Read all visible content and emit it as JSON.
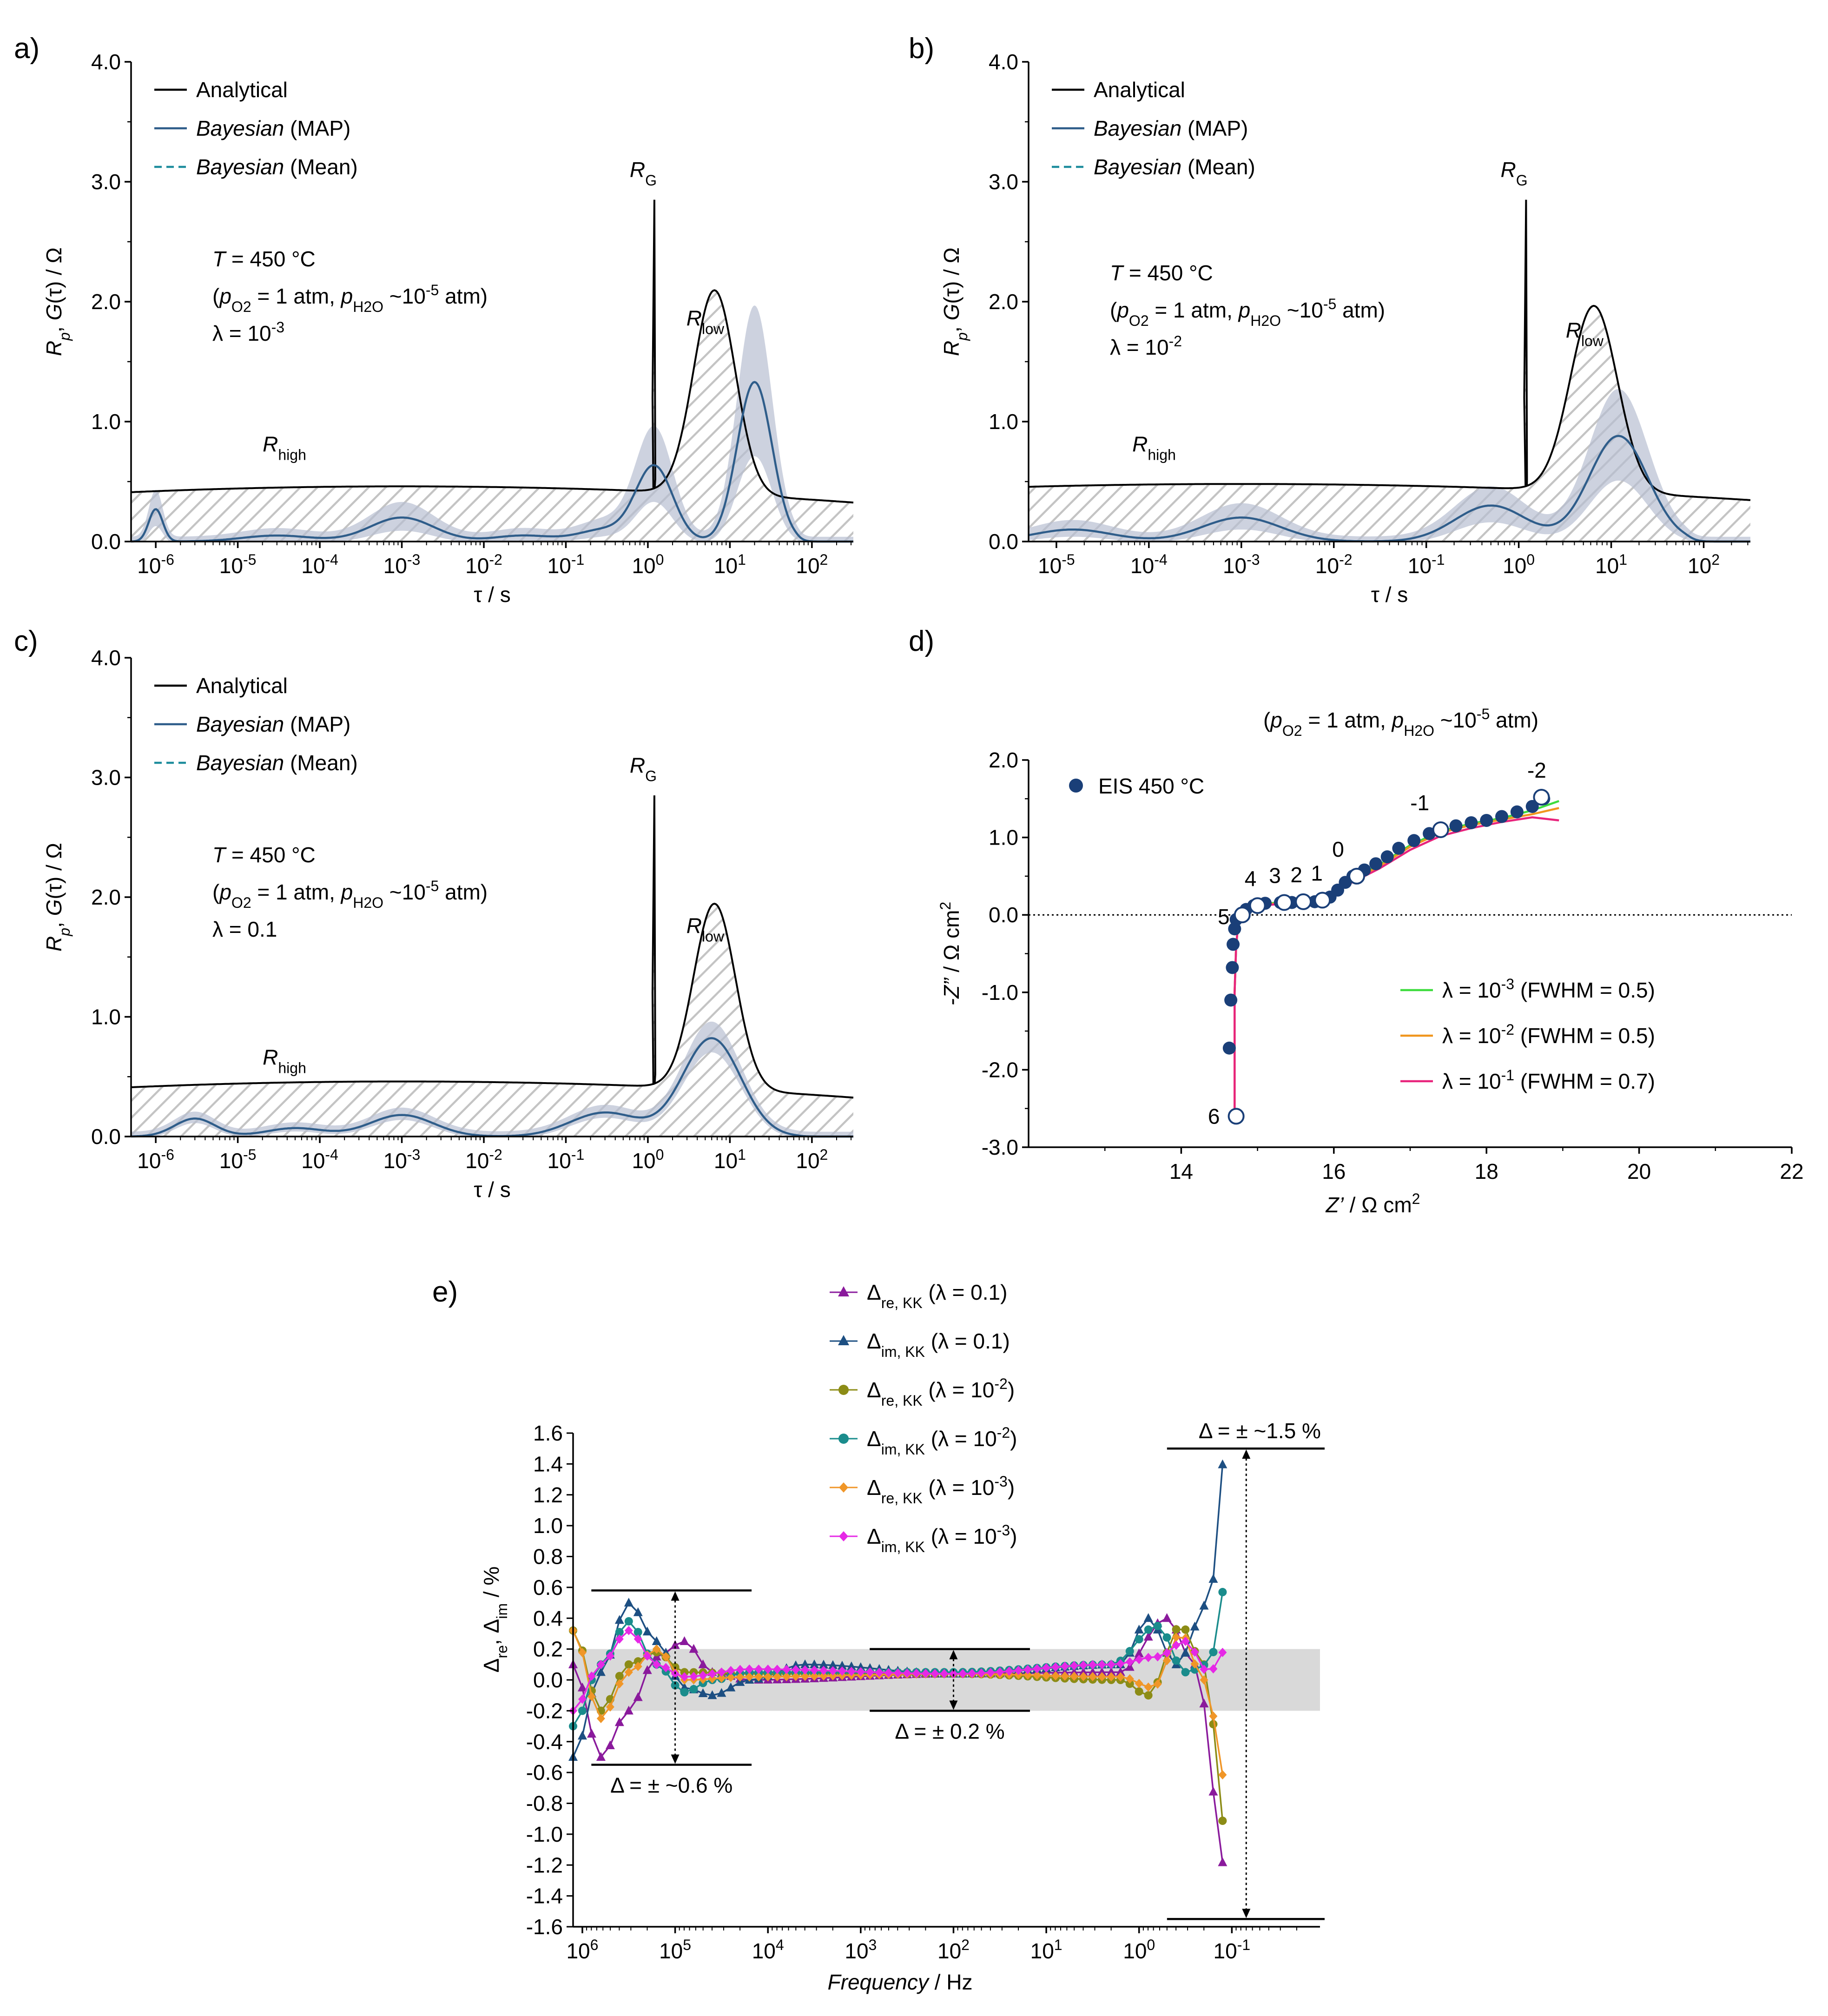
{
  "figure": {
    "panel_labels": [
      "a)",
      "b)",
      "c)",
      "d)",
      "e)"
    ],
    "colors": {
      "analytical": "#000000",
      "map": "#2f5d8a",
      "mean": "#1c8c9c",
      "credible": "#b8bfd2",
      "hatch": "#bfbfbf",
      "green": "#3ddc3d",
      "orange": "#f0961e",
      "pink": "#e8247c",
      "eis": "#1a3f78",
      "purple": "#8a1a9c",
      "navy": "#1d4f82",
      "olive": "#8c8c16",
      "teal": "#1a8c8c",
      "amber": "#f09628",
      "magenta": "#e628e6",
      "band": "#d9d9d9"
    }
  },
  "chart_data": [
    {
      "id": "a",
      "type": "line",
      "title": "",
      "xlabel": "τ / s",
      "ylabel": "R_p, G(τ) / Ω",
      "xscale": "log",
      "xlim": [
        5e-07,
        320
      ],
      "ylim": [
        0,
        4
      ],
      "yticks": [
        "0.0",
        "1.0",
        "2.0",
        "3.0",
        "4.0"
      ],
      "xtick_exps": [
        "-6",
        "-5",
        "-4",
        "-3",
        "-2",
        "-1",
        "0",
        "1",
        "2"
      ],
      "legend": {
        "position": "top-left",
        "entries": [
          {
            "label": "Analytical",
            "style": "solid",
            "color": "analytical"
          },
          {
            "label": "Bayesian",
            "suffix": "(MAP)",
            "style": "solid",
            "color": "map"
          },
          {
            "label": "Bayesian",
            "suffix": "(Mean)",
            "style": "dashed",
            "color": "mean"
          }
        ]
      },
      "conditions": [
        "T = 450 °C",
        "(pO2 = 1 atm, pH2O ~10-5 atm)",
        "λ = 10-3"
      ],
      "annotations": [
        {
          "text": "R",
          "sub": "G"
        },
        {
          "text": "R",
          "sub": "low"
        },
        {
          "text": "R",
          "sub": "high"
        }
      ],
      "rg_spike": {
        "x": 1.2,
        "y": 2.85
      },
      "analytical": {
        "a": 0.46,
        "b": 0.04,
        "c": 1.7,
        "w": 0.36,
        "xs": 1.2
      },
      "map_peaks": [
        [
          1e-06,
          0.27,
          0.12
        ],
        [
          3e-05,
          0.05,
          0.6
        ],
        [
          0.001,
          0.2,
          0.55
        ],
        [
          0.03,
          0.05,
          0.5
        ],
        [
          0.3,
          0.1,
          0.45
        ],
        [
          1.2,
          0.62,
          0.32
        ],
        [
          20,
          1.33,
          0.3
        ]
      ],
      "cutoff": 60,
      "band_rel": 0.45
    },
    {
      "id": "b",
      "type": "line",
      "title": "",
      "xlabel": "τ / s",
      "ylabel": "R_p, G(τ) / Ω",
      "xscale": "log",
      "xlim": [
        5e-06,
        320
      ],
      "ylim": [
        0,
        4
      ],
      "yticks": [
        "0.0",
        "1.0",
        "2.0",
        "3.0",
        "4.0"
      ],
      "xtick_exps": [
        "-5",
        "-4",
        "-3",
        "-2",
        "-1",
        "0",
        "1",
        "2"
      ],
      "legend": {
        "position": "top-left",
        "entries": [
          {
            "label": "Analytical",
            "style": "solid",
            "color": "analytical"
          },
          {
            "label": "Bayesian",
            "suffix": "(MAP)",
            "style": "solid",
            "color": "map"
          },
          {
            "label": "Bayesian",
            "suffix": "(Mean)",
            "style": "dashed",
            "color": "mean"
          }
        ]
      },
      "conditions": [
        "T = 450 °C",
        "(pO2 = 1 atm, pH2O ~10-5 atm)",
        "λ = 10-2"
      ],
      "annotations": [
        {
          "text": "R",
          "sub": "G"
        },
        {
          "text": "R",
          "sub": "low"
        },
        {
          "text": "R",
          "sub": "high"
        }
      ],
      "rg_spike": {
        "x": 1.2,
        "y": 2.85
      },
      "analytical": {
        "a": 0.48,
        "b": 0.04,
        "c": 1.55,
        "w": 0.36,
        "xs": 1.2
      },
      "map_peaks": [
        [
          1.5e-05,
          0.1,
          0.6
        ],
        [
          0.001,
          0.2,
          0.6
        ],
        [
          0.5,
          0.3,
          0.55
        ],
        [
          12,
          0.88,
          0.45
        ]
      ],
      "cutoff": 60,
      "band_rel": 0.4
    },
    {
      "id": "c",
      "type": "line",
      "title": "",
      "xlabel": "τ / s",
      "ylabel": "R_p, G(τ) / Ω",
      "xscale": "log",
      "xlim": [
        5e-07,
        320
      ],
      "ylim": [
        0,
        4
      ],
      "yticks": [
        "0.0",
        "1.0",
        "2.0",
        "3.0",
        "4.0"
      ],
      "xtick_exps": [
        "-6",
        "-5",
        "-4",
        "-3",
        "-2",
        "-1",
        "0",
        "1",
        "2"
      ],
      "legend": {
        "position": "top-left",
        "entries": [
          {
            "label": "Analytical",
            "style": "solid",
            "color": "analytical"
          },
          {
            "label": "Bayesian",
            "suffix": "(MAP)",
            "style": "solid",
            "color": "map"
          },
          {
            "label": "Bayesian",
            "suffix": "(Mean)",
            "style": "dashed",
            "color": "mean"
          }
        ]
      },
      "conditions": [
        "T = 450 °C",
        "(pO2 = 1 atm, pH2O ~10-5 atm)",
        "λ = 0.1"
      ],
      "annotations": [
        {
          "text": "R",
          "sub": "G"
        },
        {
          "text": "R",
          "sub": "low"
        },
        {
          "text": "R",
          "sub": "high"
        }
      ],
      "rg_spike": {
        "x": 1.2,
        "y": 2.85
      },
      "analytical": {
        "a": 0.46,
        "b": 0.04,
        "c": 1.55,
        "w": 0.36,
        "xs": 1.2
      },
      "map_peaks": [
        [
          3e-06,
          0.15,
          0.35
        ],
        [
          5e-05,
          0.07,
          0.5
        ],
        [
          0.001,
          0.18,
          0.55
        ],
        [
          0.3,
          0.2,
          0.6
        ],
        [
          6,
          0.82,
          0.5
        ]
      ],
      "cutoff": 60,
      "band_rel": 0.12
    },
    {
      "id": "d",
      "type": "scatter",
      "title": "(pO2 = 1 atm, pH2O ~10-5 atm)",
      "xlabel": "Z’ / Ω cm2",
      "ylabel": "-Z” / Ω cm2",
      "xlim": [
        12,
        22
      ],
      "ylim": [
        -3,
        2
      ],
      "xticks": [
        "14",
        "16",
        "18",
        "20",
        "22"
      ],
      "yticks": [
        "-3.0",
        "-2.0",
        "-1.0",
        "0.0",
        "1.0",
        "2.0"
      ],
      "series": [
        {
          "name": "EIS 450 °C",
          "color": "eis",
          "x": [
            14.63,
            14.65,
            14.67,
            14.68,
            14.7,
            14.72,
            14.78,
            14.85,
            14.95,
            15.1,
            15.3,
            15.45,
            15.6,
            15.75,
            15.85,
            15.95,
            16.05,
            16.15,
            16.25,
            16.4,
            16.55,
            16.7,
            16.85,
            17.05,
            17.25,
            17.4,
            17.6,
            17.8,
            18.0,
            18.2,
            18.4,
            18.6,
            18.75
          ],
          "y": [
            -1.72,
            -1.1,
            -0.68,
            -0.38,
            -0.18,
            -0.06,
            0.0,
            0.07,
            0.12,
            0.15,
            0.16,
            0.16,
            0.17,
            0.17,
            0.19,
            0.23,
            0.32,
            0.42,
            0.5,
            0.58,
            0.66,
            0.75,
            0.86,
            0.96,
            1.05,
            1.1,
            1.15,
            1.19,
            1.22,
            1.27,
            1.33,
            1.4,
            1.5
          ]
        },
        {
          "name": "λ = 10",
          "exp": "-3",
          "fwhm": "(FWHM = 0.5)",
          "color": "green",
          "x": [
            14.7,
            14.7,
            14.72,
            14.75,
            14.85,
            15.0,
            15.3,
            15.6,
            15.9,
            16.2,
            16.6,
            17.0,
            17.4,
            17.8,
            18.2,
            18.6,
            18.95
          ],
          "y": [
            -2.55,
            -1.0,
            -0.4,
            -0.08,
            0.08,
            0.14,
            0.16,
            0.18,
            0.24,
            0.45,
            0.65,
            0.9,
            1.08,
            1.18,
            1.25,
            1.35,
            1.47
          ]
        },
        {
          "name": "λ = 10",
          "exp": "-2",
          "fwhm": "(FWHM = 0.5)",
          "color": "orange",
          "x": [
            14.7,
            14.7,
            14.72,
            14.75,
            14.85,
            15.0,
            15.3,
            15.6,
            15.9,
            16.2,
            16.6,
            17.0,
            17.4,
            17.8,
            18.2,
            18.6,
            18.95
          ],
          "y": [
            -2.55,
            -1.0,
            -0.4,
            -0.08,
            0.08,
            0.13,
            0.15,
            0.17,
            0.23,
            0.43,
            0.63,
            0.88,
            1.06,
            1.16,
            1.23,
            1.3,
            1.38
          ]
        },
        {
          "name": "λ = 10",
          "exp": "-1",
          "fwhm": "(FWHM = 0.7)",
          "color": "pink",
          "x": [
            14.7,
            14.7,
            14.72,
            14.75,
            14.85,
            15.0,
            15.3,
            15.6,
            15.9,
            16.2,
            16.6,
            17.0,
            17.4,
            17.8,
            18.2,
            18.6,
            18.95
          ],
          "y": [
            -2.55,
            -1.0,
            -0.4,
            -0.08,
            0.07,
            0.12,
            0.14,
            0.16,
            0.22,
            0.4,
            0.6,
            0.84,
            1.02,
            1.12,
            1.2,
            1.26,
            1.22
          ]
        }
      ],
      "open_points": [
        {
          "x": 18.72,
          "y": 1.52,
          "label": "-2"
        },
        {
          "x": 17.4,
          "y": 1.1,
          "label": "-1"
        },
        {
          "x": 16.3,
          "y": 0.5,
          "label": "0"
        },
        {
          "x": 15.85,
          "y": 0.19,
          "label": "1"
        },
        {
          "x": 15.6,
          "y": 0.17,
          "label": "2"
        },
        {
          "x": 15.35,
          "y": 0.16,
          "label": "3"
        },
        {
          "x": 15.0,
          "y": 0.12,
          "label": "4"
        },
        {
          "x": 14.8,
          "y": 0.0,
          "label": "5"
        },
        {
          "x": 14.72,
          "y": -2.6,
          "label": "6"
        }
      ],
      "reference_line_y": 0
    },
    {
      "id": "e",
      "type": "line",
      "title": "",
      "xlabel": "Frequency / Hz",
      "ylabel": "Δre, Δim / %",
      "xscale": "log-reversed",
      "xlim": [
        1000000.0,
        0.01
      ],
      "ylim": [
        -1.6,
        1.6
      ],
      "xtick_exps": [
        "6",
        "5",
        "4",
        "3",
        "2",
        "1",
        "0",
        "-1"
      ],
      "yticks": [
        "-1.6",
        "-1.4",
        "-1.2",
        "-1.0",
        "-0.8",
        "-0.6",
        "-0.4",
        "-0.2",
        "0.0",
        "0.2",
        "0.4",
        "0.6",
        "0.8",
        "1.0",
        "1.2",
        "1.4",
        "1.6"
      ],
      "band": [
        -0.2,
        0.2
      ],
      "brackets": [
        {
          "label": "Δ = ± ~0.6 %",
          "f_range": [
            800000.0,
            15000.0
          ],
          "y": [
            0.58,
            -0.55
          ],
          "arrow_f": 100000.0
        },
        {
          "label": "Δ = ± 0.2 %",
          "f_range": [
            800.0,
            15
          ],
          "y": [
            0.2,
            -0.2
          ],
          "arrow_f": 100
        },
        {
          "label": "Δ = ± ~1.5 %",
          "f_range": [
            0.5,
            0.01
          ],
          "y": [
            1.5,
            -1.55
          ],
          "arrow_f": 0.07
        }
      ],
      "series": [
        {
          "name": "Δ",
          "sub": "re, KK",
          "param": "(λ = 0.1)",
          "marker": "triangle",
          "color": "purple",
          "ctrl": [
            [
              6.1,
              0.1
            ],
            [
              5.8,
              -0.5
            ],
            [
              5.5,
              -0.2
            ],
            [
              5.2,
              0.15
            ],
            [
              4.9,
              0.25
            ],
            [
              4.6,
              0.05
            ],
            [
              4.2,
              0.0
            ],
            [
              2.0,
              0.04
            ],
            [
              0.2,
              0.05
            ],
            [
              -0.3,
              0.4
            ],
            [
              -0.6,
              0.1
            ],
            [
              -0.95,
              -1.25
            ]
          ]
        },
        {
          "name": "Δ",
          "sub": "im, KK",
          "param": "(λ = 0.1)",
          "marker": "triangle",
          "color": "navy",
          "ctrl": [
            [
              6.1,
              -0.5
            ],
            [
              5.8,
              0.05
            ],
            [
              5.5,
              0.5
            ],
            [
              5.2,
              0.25
            ],
            [
              4.9,
              -0.05
            ],
            [
              4.6,
              -0.1
            ],
            [
              4.2,
              0.0
            ],
            [
              3.6,
              0.1
            ],
            [
              2.0,
              0.04
            ],
            [
              0.2,
              0.1
            ],
            [
              -0.1,
              0.4
            ],
            [
              -0.4,
              0.1
            ],
            [
              -0.75,
              0.5
            ],
            [
              -0.95,
              1.55
            ]
          ]
        },
        {
          "name": "Δ",
          "sub": "re, KK",
          "param": "(λ = 10",
          "exp": "-2",
          "marker": "circle",
          "color": "olive",
          "ctrl": [
            [
              6.1,
              0.32
            ],
            [
              5.8,
              -0.2
            ],
            [
              5.5,
              0.1
            ],
            [
              5.2,
              0.18
            ],
            [
              4.9,
              0.05
            ],
            [
              4.2,
              0.04
            ],
            [
              2.0,
              0.04
            ],
            [
              0.2,
              0.0
            ],
            [
              -0.1,
              -0.1
            ],
            [
              -0.45,
              0.35
            ],
            [
              -0.7,
              0.1
            ],
            [
              -0.95,
              -1.02
            ]
          ]
        },
        {
          "name": "Δ",
          "sub": "im, KK",
          "param": "(λ = 10",
          "exp": "-2",
          "marker": "circle",
          "color": "teal",
          "ctrl": [
            [
              6.1,
              -0.3
            ],
            [
              5.8,
              0.1
            ],
            [
              5.5,
              0.38
            ],
            [
              5.2,
              0.1
            ],
            [
              4.9,
              -0.08
            ],
            [
              4.6,
              0.0
            ],
            [
              4.2,
              0.05
            ],
            [
              2.0,
              0.05
            ],
            [
              0.3,
              0.1
            ],
            [
              -0.2,
              0.35
            ],
            [
              -0.5,
              0.05
            ],
            [
              -0.75,
              0.1
            ],
            [
              -0.95,
              0.65
            ]
          ]
        },
        {
          "name": "Δ",
          "sub": "re, KK",
          "param": "(λ = 10",
          "exp": "-3",
          "marker": "diamond",
          "color": "amber",
          "ctrl": [
            [
              6.1,
              0.32
            ],
            [
              5.8,
              -0.25
            ],
            [
              5.5,
              0.05
            ],
            [
              5.2,
              0.2
            ],
            [
              4.9,
              0.0
            ],
            [
              4.2,
              0.02
            ],
            [
              2.0,
              0.04
            ],
            [
              0.2,
              0.02
            ],
            [
              -0.15,
              -0.05
            ],
            [
              -0.45,
              0.3
            ],
            [
              -0.7,
              0.0
            ],
            [
              -0.95,
              -0.68
            ]
          ]
        },
        {
          "name": "Δ",
          "sub": "im, KK",
          "param": "(λ = 10",
          "exp": "-3",
          "marker": "diamond",
          "color": "magenta",
          "ctrl": [
            [
              6.1,
              -0.2
            ],
            [
              5.8,
              0.1
            ],
            [
              5.5,
              0.32
            ],
            [
              5.2,
              0.1
            ],
            [
              4.9,
              0.02
            ],
            [
              4.2,
              0.07
            ],
            [
              2.0,
              0.04
            ],
            [
              0.3,
              0.1
            ],
            [
              -0.2,
              0.15
            ],
            [
              -0.5,
              0.25
            ],
            [
              -0.75,
              0.05
            ],
            [
              -0.95,
              0.2
            ]
          ]
        }
      ]
    }
  ]
}
